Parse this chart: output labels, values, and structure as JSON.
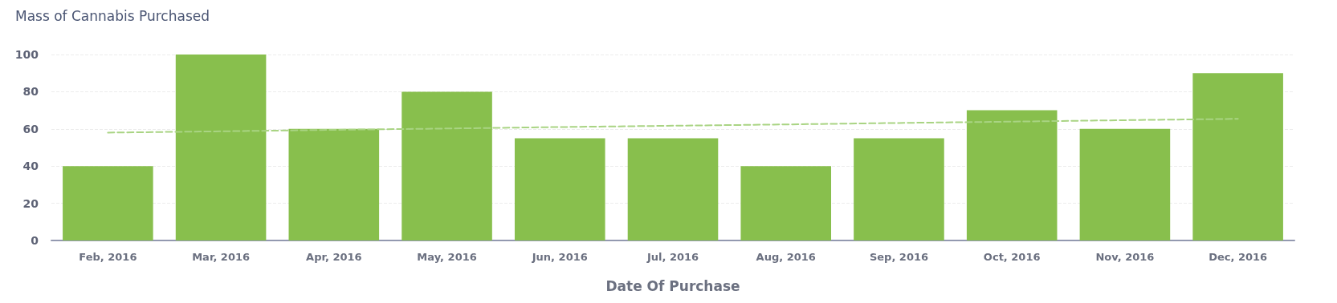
{
  "chart_data": {
    "type": "bar",
    "title": "Mass of Cannabis Purchased",
    "xlabel": "Date Of Purchase",
    "categories": [
      "Feb, 2016",
      "Mar, 2016",
      "Apr, 2016",
      "May, 2016",
      "Jun, 2016",
      "Jul, 2016",
      "Aug, 2016",
      "Sep, 2016",
      "Oct, 2016",
      "Nov, 2016",
      "Dec, 2016"
    ],
    "series": [
      {
        "color": "#88bf4d",
        "values": [
          40,
          100,
          60,
          80,
          55,
          55,
          40,
          55,
          70,
          60,
          90
        ]
      },
      {
        "type": "line",
        "line_style": "dashed",
        "marker": "none",
        "color": "#a9d483",
        "x": [
          "Feb, 2016",
          "Mar, 2016",
          "Apr, 2016",
          "May, 2016",
          "Jun, 2016",
          "Jul, 2016",
          "Aug, 2016",
          "Sep, 2016",
          "Oct, 2016",
          "Nov, 2016",
          "Dec, 2016"
        ],
        "values": [
          58,
          58.7,
          59.5,
          60.2,
          61,
          61.7,
          62.4,
          63.2,
          63.9,
          64.7,
          65.4
        ]
      }
    ],
    "ylim": [
      0,
      100
    ],
    "yticks": [
      0,
      20,
      40,
      60,
      80,
      100
    ],
    "grid": "y"
  }
}
